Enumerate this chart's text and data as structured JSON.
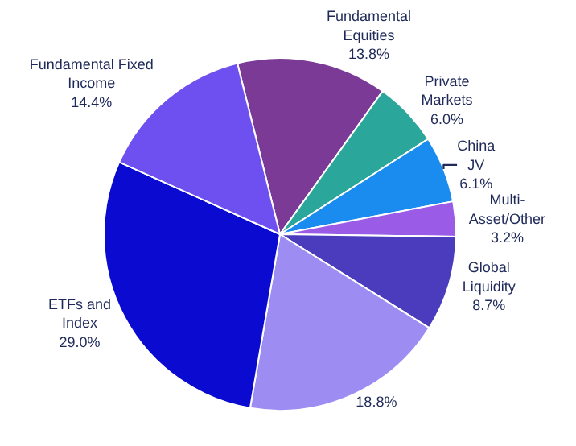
{
  "chart_data": {
    "type": "pie",
    "categories": [
      "Fundamental Equities",
      "Private Markets",
      "China JV",
      "Multi-Asset/Other",
      "Global Liquidity",
      null,
      "ETFs and Index",
      "Fundamental Fixed Income"
    ],
    "values": [
      13.8,
      6.0,
      6.1,
      3.2,
      8.7,
      18.8,
      29.0,
      14.4
    ],
    "colors": [
      "#7a3a96",
      "#2aa69a",
      "#1a8cf0",
      "#9a5ce6",
      "#4a3cbc",
      "#9d8cf2",
      "#0a0ad0",
      "#6e50f0"
    ],
    "value_labels": [
      "13.8%",
      "6.0%",
      "6.1%",
      "3.2%",
      "8.7%",
      "18.8%",
      "29.0%",
      "14.4%"
    ],
    "legend": false
  }
}
